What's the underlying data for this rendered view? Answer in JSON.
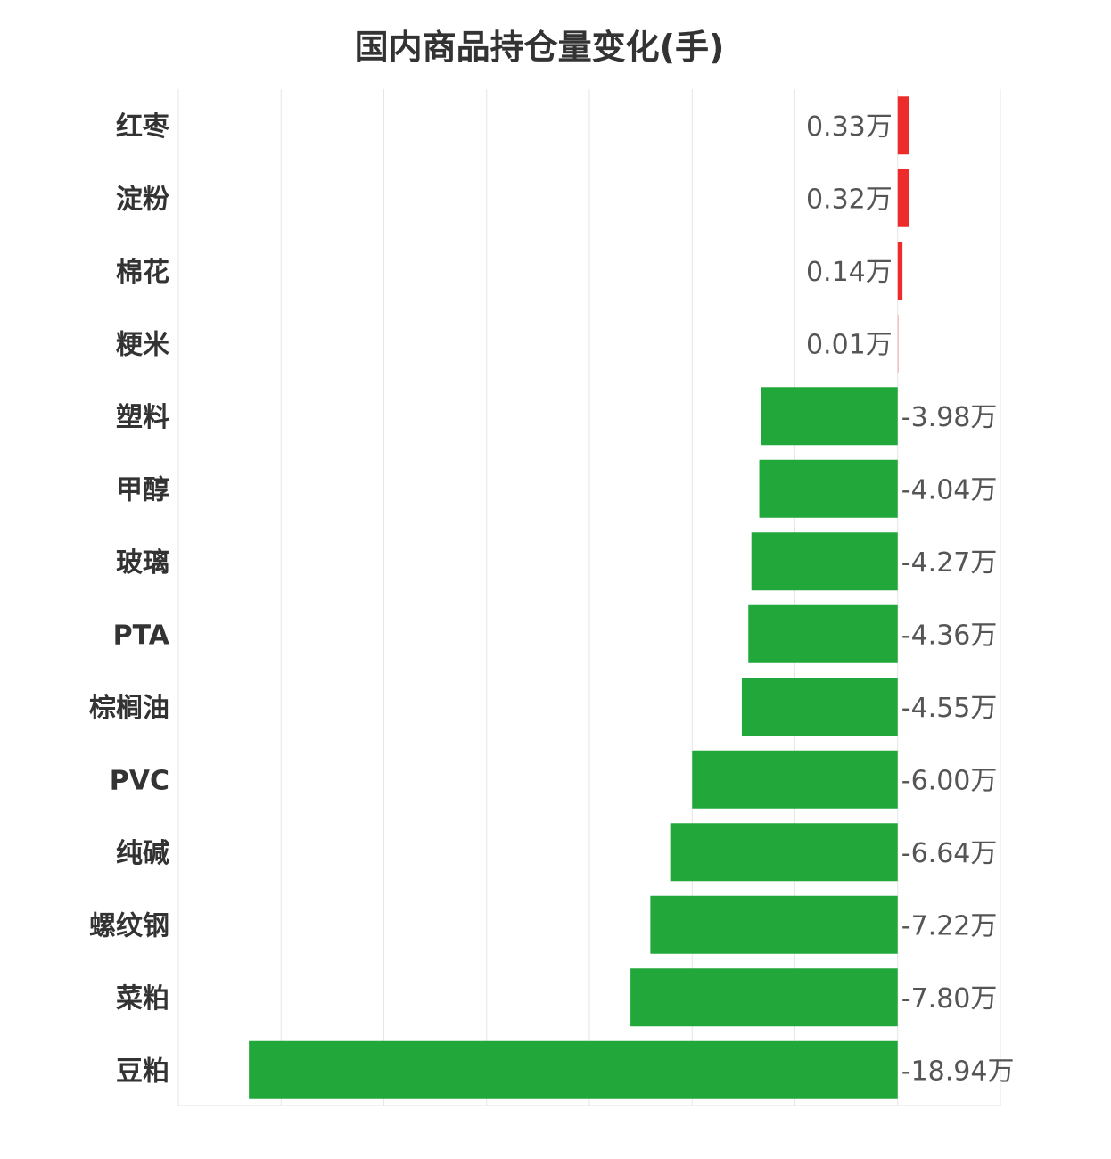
{
  "chart_data": {
    "type": "bar",
    "orientation": "horizontal",
    "title": "国内商品持仓量变化(手)",
    "xlabel": "",
    "ylabel": "",
    "unit_suffix": "万",
    "categories": [
      "红枣",
      "淀粉",
      "棉花",
      "粳米",
      "塑料",
      "甲醇",
      "玻璃",
      "PTA",
      "棕榈油",
      "PVC",
      "纯碱",
      "螺纹钢",
      "菜粕",
      "豆粕"
    ],
    "values": [
      0.33,
      0.32,
      0.14,
      0.01,
      -3.98,
      -4.04,
      -4.27,
      -4.36,
      -4.55,
      -6.0,
      -6.64,
      -7.22,
      -7.8,
      -18.94
    ],
    "value_labels": [
      "0.33万",
      "0.32万",
      "0.14万",
      "0.01万",
      "-3.98万",
      "-4.04万",
      "-4.27万",
      "-4.36万",
      "-4.55万",
      "-6.00万",
      "-6.64万",
      "-7.22万",
      "-7.80万",
      "-18.94万"
    ],
    "xlim": [
      -21,
      3
    ],
    "grid": true,
    "legend": "none",
    "colors": {
      "positive": "#ee2b2b",
      "negative": "#22a83a"
    }
  }
}
